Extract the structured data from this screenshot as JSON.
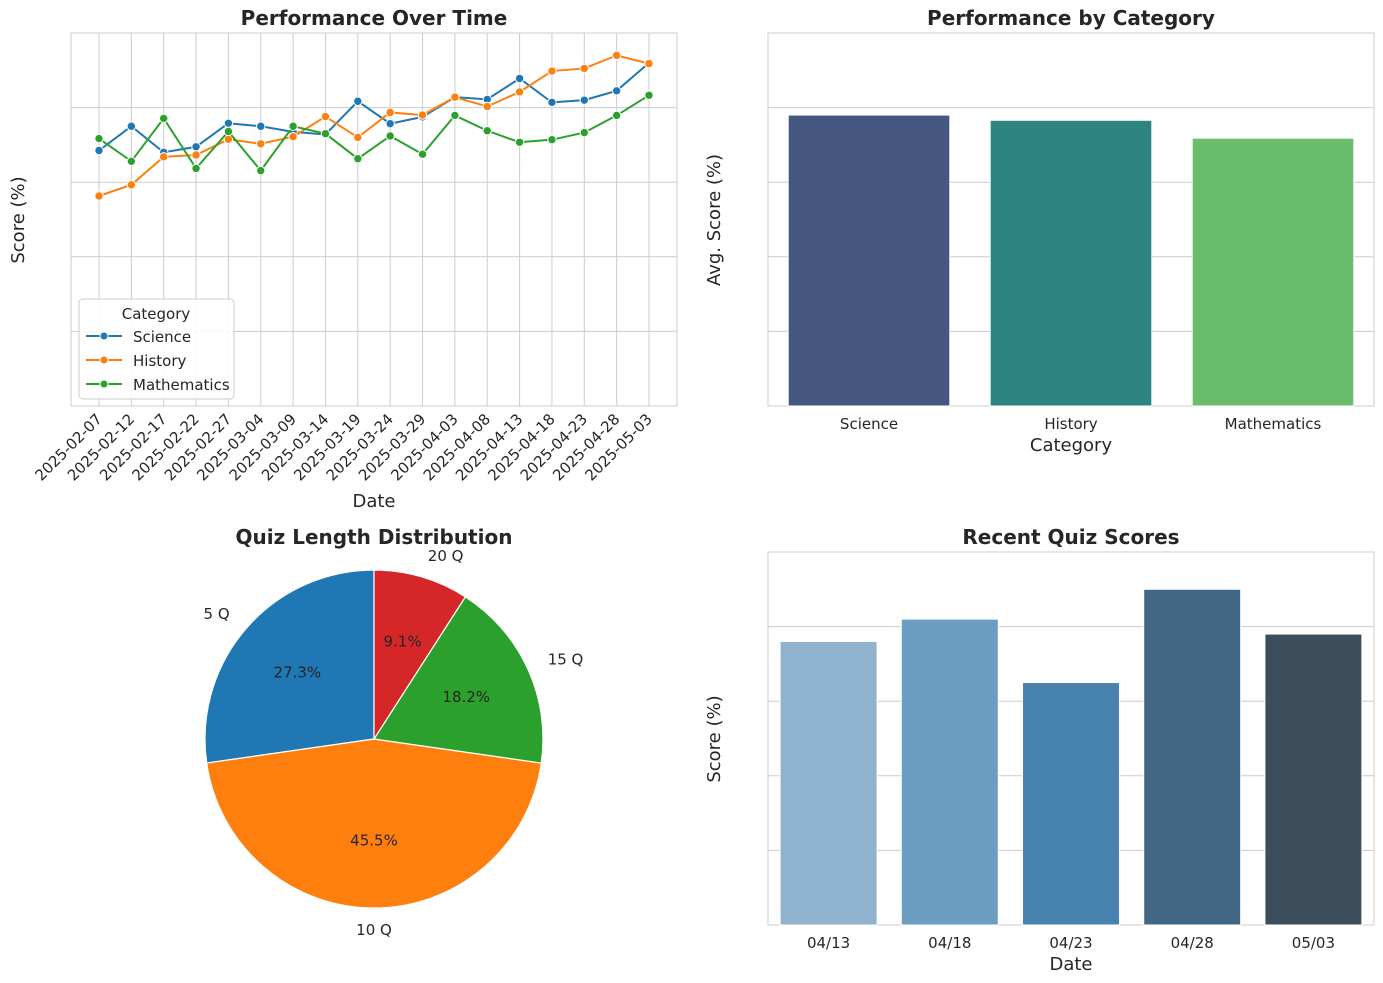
{
  "chart_data": [
    {
      "type": "line",
      "title": "Performance Over Time",
      "xlabel": "Date",
      "ylabel": "Score (%)",
      "ylim": [
        0,
        100
      ],
      "yticks": [
        0,
        20,
        40,
        60,
        80,
        100
      ],
      "grid": true,
      "x": [
        "2025-02-07",
        "2025-02-12",
        "2025-02-17",
        "2025-02-22",
        "2025-02-27",
        "2025-03-04",
        "2025-03-09",
        "2025-03-14",
        "2025-03-19",
        "2025-03-24",
        "2025-03-29",
        "2025-04-03",
        "2025-04-08",
        "2025-04-13",
        "2025-04-18",
        "2025-04-23",
        "2025-04-28",
        "2025-05-03"
      ],
      "legend": {
        "title": "Category",
        "placement": "lower-left"
      },
      "series": [
        {
          "name": "Science",
          "color": "#1f77b4",
          "values": [
            68.5,
            75,
            68,
            69.5,
            75.8,
            75,
            73.5,
            72.8,
            81.7,
            75.7,
            77.5,
            82.8,
            82.2,
            87.8,
            81.4,
            82,
            84.5,
            92
          ]
        },
        {
          "name": "History",
          "color": "#ff7f0e",
          "values": [
            56.3,
            59.3,
            66.8,
            67.3,
            71.5,
            70.3,
            72.2,
            77.6,
            72,
            78.7,
            78,
            82.8,
            80.3,
            84.2,
            89.8,
            90.5,
            94,
            91.8
          ]
        },
        {
          "name": "Mathematics",
          "color": "#2ca02c",
          "values": [
            71.7,
            65.6,
            77.1,
            63.7,
            73.6,
            63.1,
            75,
            73,
            66.3,
            72.4,
            67.5,
            77.9,
            73.8,
            70.7,
            71.4,
            73.3,
            77.9,
            83.3
          ]
        }
      ]
    },
    {
      "type": "bar",
      "title": "Performance by Category",
      "xlabel": "Category",
      "ylabel": "Avg. Score (%)",
      "ylim": [
        0,
        100
      ],
      "yticks": [
        0,
        20,
        40,
        60,
        80,
        100
      ],
      "grid": true,
      "categories": [
        "Science",
        "History",
        "Mathematics"
      ],
      "values": [
        78,
        76.6,
        71.8
      ],
      "colors": [
        "#46577f",
        "#2e8480",
        "#6abd6b"
      ]
    },
    {
      "type": "pie",
      "title": "Quiz Length Distribution",
      "labels": [
        "5 Q",
        "10 Q",
        "15 Q",
        "20 Q"
      ],
      "values": [
        27.3,
        45.5,
        18.2,
        9.1
      ],
      "pct_labels": [
        "27.3%",
        "45.5%",
        "18.2%",
        "9.1%"
      ],
      "colors": [
        "#1f77b4",
        "#ff7f0e",
        "#2ca02c",
        "#d62728"
      ]
    },
    {
      "type": "bar",
      "title": "Recent Quiz Scores",
      "xlabel": "Date",
      "ylabel": "Score (%)",
      "ylim": [
        0,
        100
      ],
      "yticks": [
        0,
        20,
        40,
        60,
        80,
        100
      ],
      "grid": true,
      "categories": [
        "04/13",
        "04/18",
        "04/23",
        "04/28",
        "05/03"
      ],
      "values": [
        76,
        82,
        65,
        90,
        78
      ],
      "colors": [
        "#8fb3ce",
        "#6a9dbf",
        "#4883b0",
        "#426785",
        "#3c4e5b"
      ]
    }
  ]
}
